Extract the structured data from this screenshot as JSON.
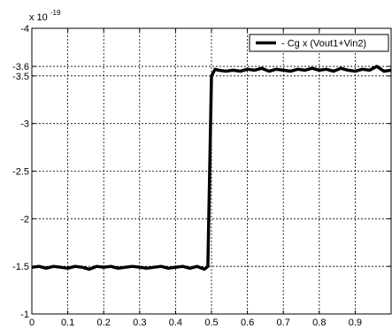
{
  "chart_data": {
    "type": "line",
    "title": "",
    "xlabel": "",
    "ylabel": "",
    "exponent_label": {
      "prefix": "x 10",
      "power": "-19"
    },
    "xlim": [
      0,
      1
    ],
    "ylim": [
      -4,
      -1
    ],
    "y_reversed": true,
    "x_ticks": [
      "0",
      "0.1",
      "0.2",
      "0.3",
      "0.4",
      "0.5",
      "0.6",
      "0.7",
      "0.8",
      "0.9"
    ],
    "y_ticks": [
      "-4",
      "-3.6",
      "-3.5",
      "-3",
      "-2.5",
      "-2",
      "-1.5",
      "-1"
    ],
    "y_tick_values": [
      -4,
      -3.6,
      -3.5,
      -3,
      -2.5,
      -2,
      -1.5,
      -1
    ],
    "grid": true,
    "legend_position": "top-right",
    "series": [
      {
        "name": "- Cg x (Vout1+Vin2)",
        "color": "#000000",
        "x": [
          0.0,
          0.02,
          0.04,
          0.06,
          0.08,
          0.1,
          0.12,
          0.14,
          0.16,
          0.18,
          0.2,
          0.22,
          0.24,
          0.26,
          0.28,
          0.3,
          0.32,
          0.34,
          0.36,
          0.38,
          0.4,
          0.42,
          0.44,
          0.46,
          0.48,
          0.49,
          0.5,
          0.51,
          0.52,
          0.54,
          0.56,
          0.58,
          0.6,
          0.62,
          0.64,
          0.66,
          0.68,
          0.7,
          0.72,
          0.74,
          0.76,
          0.78,
          0.8,
          0.82,
          0.84,
          0.86,
          0.88,
          0.9,
          0.92,
          0.94,
          0.96,
          0.98,
          1.0
        ],
        "y": [
          -1.49,
          -1.5,
          -1.48,
          -1.5,
          -1.49,
          -1.48,
          -1.5,
          -1.49,
          -1.47,
          -1.5,
          -1.49,
          -1.5,
          -1.48,
          -1.49,
          -1.5,
          -1.49,
          -1.48,
          -1.49,
          -1.5,
          -1.48,
          -1.49,
          -1.5,
          -1.48,
          -1.5,
          -1.47,
          -1.5,
          -3.5,
          -3.57,
          -3.56,
          -3.55,
          -3.56,
          -3.55,
          -3.57,
          -3.56,
          -3.58,
          -3.55,
          -3.57,
          -3.56,
          -3.55,
          -3.57,
          -3.56,
          -3.58,
          -3.56,
          -3.57,
          -3.55,
          -3.58,
          -3.56,
          -3.55,
          -3.57,
          -3.56,
          -3.6,
          -3.55,
          -3.56
        ]
      }
    ]
  }
}
